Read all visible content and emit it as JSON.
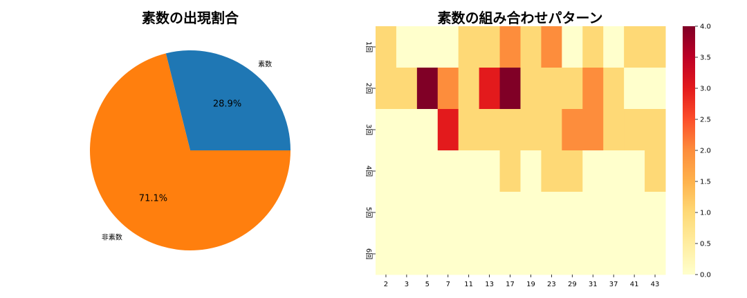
{
  "chart_data": [
    {
      "type": "pie",
      "title": "素数の出現割合",
      "labels": [
        "素数",
        "非素数"
      ],
      "values": [
        28.9,
        71.1
      ],
      "value_labels": [
        "28.9%",
        "71.1%"
      ],
      "colors": [
        "#1f77b4",
        "#ff7f0e"
      ]
    },
    {
      "type": "heatmap",
      "title": "素数の組み合わせパターン",
      "x": [
        "2",
        "3",
        "5",
        "7",
        "11",
        "13",
        "17",
        "19",
        "23",
        "29",
        "31",
        "37",
        "41",
        "43"
      ],
      "y": [
        "1回",
        "2回",
        "3回",
        "4回",
        "5回",
        "6回"
      ],
      "values": [
        [
          1,
          0,
          0,
          0,
          1,
          1,
          2,
          1,
          2,
          0,
          1,
          0,
          1,
          1
        ],
        [
          1,
          1,
          4,
          2,
          1,
          3,
          4,
          1,
          1,
          1,
          2,
          1,
          0,
          0
        ],
        [
          0,
          0,
          0,
          3,
          1,
          1,
          1,
          1,
          1,
          2,
          2,
          1,
          1,
          1
        ],
        [
          0,
          0,
          0,
          0,
          0,
          0,
          1,
          0,
          1,
          1,
          0,
          0,
          0,
          1
        ],
        [
          0,
          0,
          0,
          0,
          0,
          0,
          0,
          0,
          0,
          0,
          0,
          0,
          0,
          0
        ],
        [
          0,
          0,
          0,
          0,
          0,
          0,
          0,
          0,
          0,
          0,
          0,
          0,
          0,
          0
        ]
      ],
      "colormap": "YlOrRd",
      "colorbar": {
        "range": [
          0.0,
          4.0
        ],
        "ticks": [
          "0.0",
          "0.5",
          "1.0",
          "1.5",
          "2.0",
          "2.5",
          "3.0",
          "3.5",
          "4.0"
        ]
      }
    }
  ]
}
